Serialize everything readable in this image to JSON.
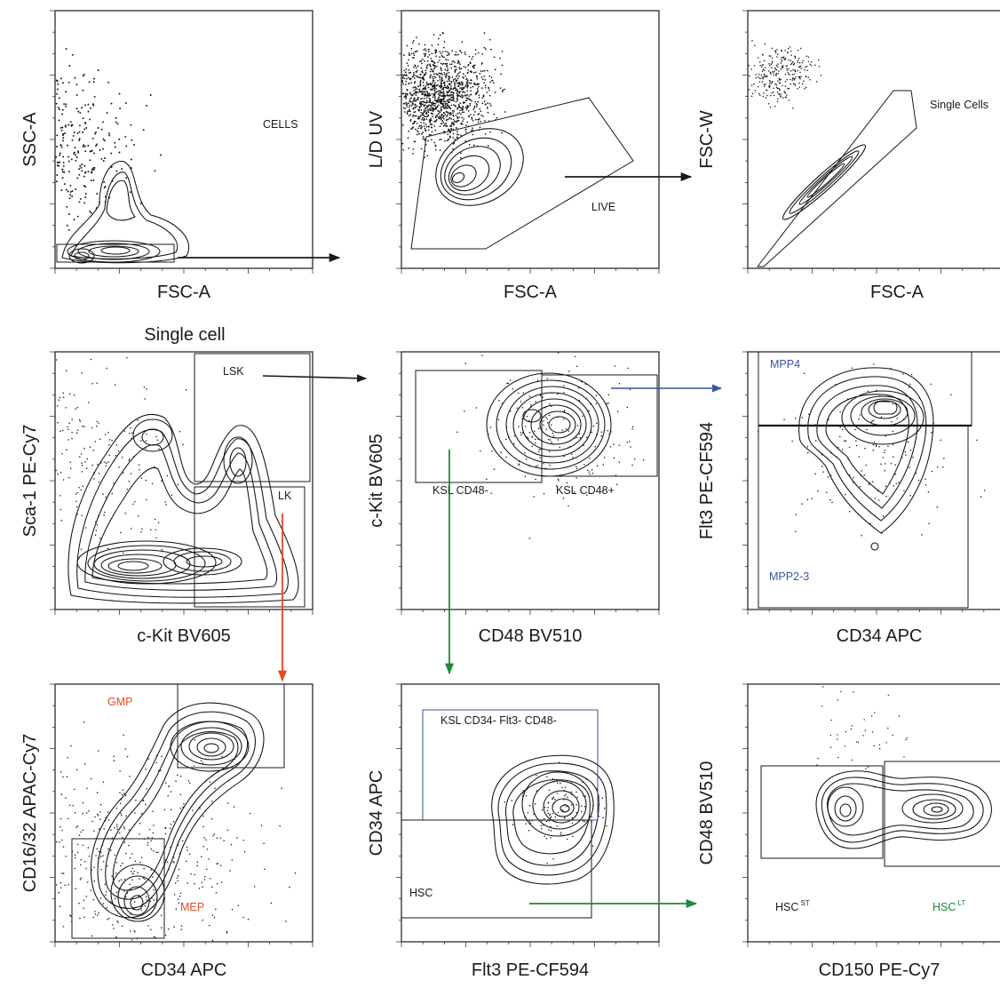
{
  "colors": {
    "ink": "#1a1a1a",
    "red": "#e8472a",
    "green": "#1f8a3a",
    "blue": "#3953a4",
    "background": "#ffffff"
  },
  "panels": [
    {
      "id": "fsc-ssc",
      "xlabel": "FSC-A",
      "ylabel": "SSC-A",
      "header": "",
      "gates": [
        {
          "label": "CELLS",
          "color": "ink"
        }
      ]
    },
    {
      "id": "fsc-ld",
      "xlabel": "FSC-A",
      "ylabel": "L/D UV",
      "header": "",
      "gates": [
        {
          "label": "LIVE",
          "color": "ink"
        }
      ]
    },
    {
      "id": "fsc-fscw",
      "xlabel": "FSC-A",
      "ylabel": "FSC-W",
      "header": "",
      "gates": [
        {
          "label": "Single Cells",
          "color": "ink"
        }
      ]
    },
    {
      "id": "kit-sca",
      "xlabel": "c-Kit BV605",
      "ylabel": "Sca-1 PE-Cy7",
      "header": "Single cell",
      "gates": [
        {
          "label": "LSK",
          "color": "ink"
        },
        {
          "label": "LK",
          "color": "ink"
        }
      ]
    },
    {
      "id": "cd48-kit",
      "xlabel": "CD48 BV510",
      "ylabel": "c-Kit BV605",
      "header": "",
      "gates": [
        {
          "label": "KSL CD48-",
          "color": "ink"
        },
        {
          "label": "KSL CD48+",
          "color": "ink"
        }
      ]
    },
    {
      "id": "cd34-flt3",
      "xlabel": "CD34 APC",
      "ylabel": "Flt3 PE-CF594",
      "header": "",
      "gates": [
        {
          "label": "MPP4",
          "color": "blue"
        },
        {
          "label": "MPP2-3",
          "color": "blue"
        }
      ]
    },
    {
      "id": "cd34-cd1632",
      "xlabel": "CD34 APC",
      "ylabel": "CD16/32 APAC-Cy7",
      "header": "",
      "gates": [
        {
          "label": "GMP",
          "color": "red"
        },
        {
          "label": "MEP",
          "color": "red"
        }
      ]
    },
    {
      "id": "flt3-cd34",
      "xlabel": "Flt3 PE-CF594",
      "ylabel": "CD34 APC",
      "header": "",
      "gates": [
        {
          "label": "KSL CD34- Flt3- CD48-",
          "color": "ink"
        },
        {
          "label": "HSC",
          "color": "ink"
        }
      ]
    },
    {
      "id": "cd150-cd48",
      "xlabel": "CD150 PE-Cy7",
      "ylabel": "CD48 BV510",
      "header": "",
      "gates": [
        {
          "label": "HSC",
          "sup": "ST",
          "color": "ink"
        },
        {
          "label": "HSC",
          "sup": "LT",
          "color": "green"
        }
      ]
    }
  ]
}
